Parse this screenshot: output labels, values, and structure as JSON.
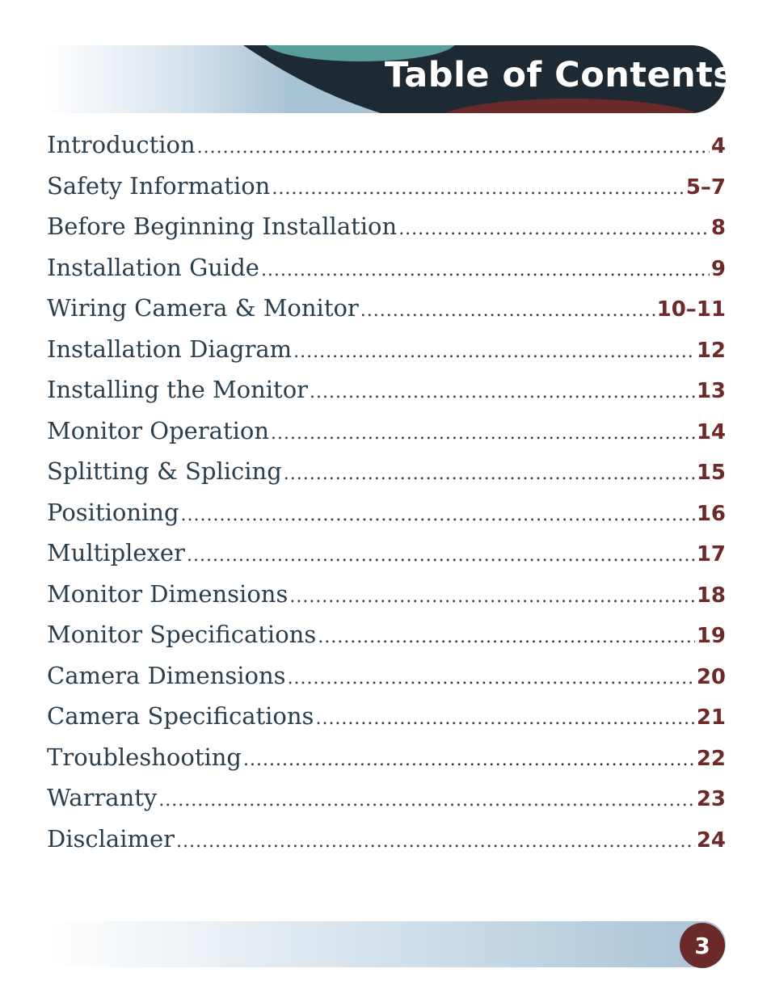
{
  "header": {
    "title": "Table of Contents"
  },
  "toc": [
    {
      "label": "Introduction",
      "page": "4"
    },
    {
      "label": "Safety Information",
      "page": "5–7"
    },
    {
      "label": "Before Beginning Installation",
      "page": "8"
    },
    {
      "label": "Installation Guide",
      "page": "9"
    },
    {
      "label": "Wiring Camera & Monitor",
      "page": "10–11"
    },
    {
      "label": "Installation Diagram",
      "page": "12"
    },
    {
      "label": "Installing the Monitor",
      "page": "13"
    },
    {
      "label": "Monitor Operation",
      "page": "14"
    },
    {
      "label": "Splitting & Splicing",
      "page": "15"
    },
    {
      "label": "Positioning",
      "page": "16"
    },
    {
      "label": "Multiplexer",
      "page": "17"
    },
    {
      "label": "Monitor Dimensions",
      "page": "18"
    },
    {
      "label": "Monitor Specifications",
      "page": "19"
    },
    {
      "label": "Camera Dimensions",
      "page": "20"
    },
    {
      "label": "Camera Specifications",
      "page": "21"
    },
    {
      "label": "Troubleshooting",
      "page": "22"
    },
    {
      "label": "Warranty",
      "page": "23"
    },
    {
      "label": "Disclaimer",
      "page": "24"
    }
  ],
  "footer": {
    "page_number": "3"
  },
  "colors": {
    "dark_band": "#1e2a33",
    "teal_accent": "#5a9e9c",
    "maroon_accent": "#6b2a2a",
    "light_blue": "#a6c0d3"
  }
}
